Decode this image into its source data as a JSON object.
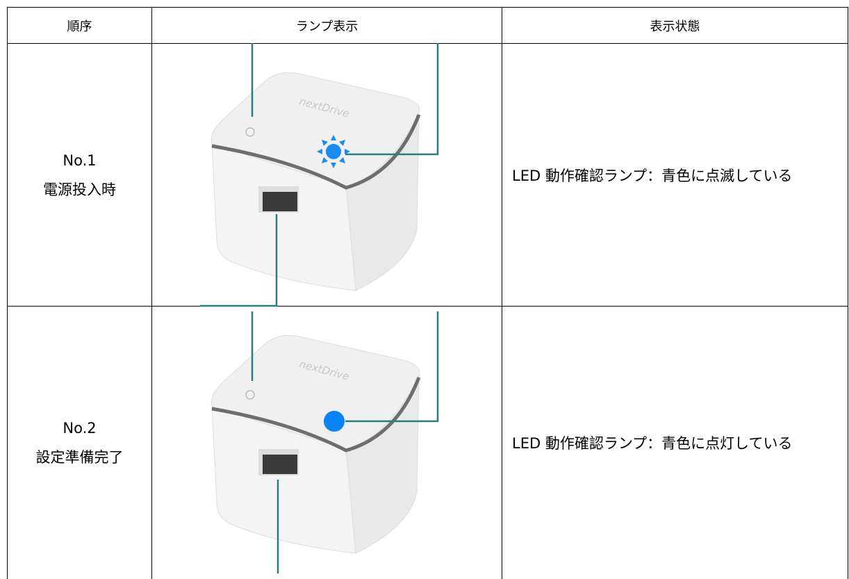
{
  "table": {
    "header": [
      "順序",
      "ランプ表示",
      "表示状態"
    ],
    "rows": [
      {
        "order": "No.1",
        "phase": "電源投入時",
        "device_label": "nextDrive",
        "status": "LED 動作確認ランプ：青色に点滅している"
      },
      {
        "order": "No.2",
        "phase": "設定準備完了",
        "device_label": "nextDrive",
        "status": "LED 動作確認ランプ：青色に点灯している"
      }
    ]
  }
}
